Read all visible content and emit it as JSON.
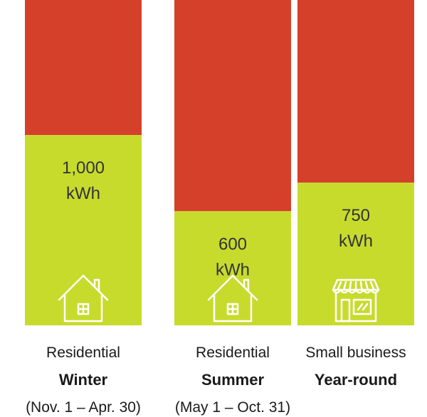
{
  "chart_data": {
    "type": "bar",
    "stacked": true,
    "note": "Green segment is the labeled kWh; red segment fills the remainder of the bar.",
    "categories": [
      {
        "line1": "Residential",
        "line2": "Winter",
        "line3": "(Nov. 1 – Apr. 30)",
        "value": 1000,
        "value_label": "1,000",
        "unit": "kWh",
        "icon": "house-icon"
      },
      {
        "line1": "Residential",
        "line2": "Summer",
        "line3": "(May 1 – Oct. 31)",
        "value": 600,
        "value_label": "600",
        "unit": "kWh",
        "icon": "house-icon"
      },
      {
        "line1": "Small business",
        "line2": "Year-round",
        "line3": "",
        "value": 750,
        "value_label": "750",
        "unit": "kWh",
        "icon": "store-icon"
      }
    ],
    "ylim": [
      0,
      1710
    ],
    "colors": {
      "lower_segment": "#c7db2d",
      "upper_segment": "#d5402a"
    },
    "title": "",
    "xlabel": "",
    "ylabel": ""
  }
}
